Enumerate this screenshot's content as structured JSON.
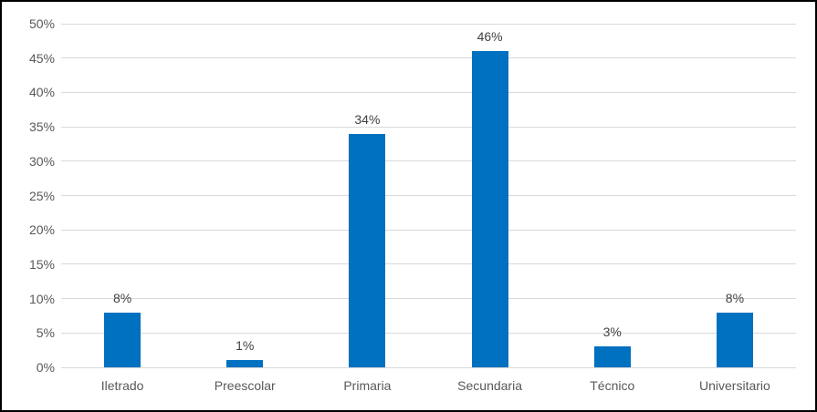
{
  "chart_data": {
    "type": "bar",
    "categories": [
      "Iletrado",
      "Preescolar",
      "Primaria",
      "Secundaria",
      "Técnico",
      "Universitario"
    ],
    "values": [
      8,
      1,
      34,
      46,
      3,
      8
    ],
    "data_labels": [
      "8%",
      "1%",
      "34%",
      "46%",
      "3%",
      "8%"
    ],
    "title": "",
    "xlabel": "",
    "ylabel": "",
    "ylim": [
      0,
      50
    ],
    "ytick_step": 5,
    "ytick_labels": [
      "0%",
      "5%",
      "10%",
      "15%",
      "20%",
      "25%",
      "30%",
      "35%",
      "40%",
      "45%",
      "50%"
    ],
    "grid": true,
    "legend": false,
    "colors": {
      "bar_fill": "#0070c0",
      "gridline": "#d9d9d9",
      "axis_text": "#595959",
      "data_label_text": "#404040",
      "frame_border": "#000000",
      "background": "#ffffff"
    }
  }
}
